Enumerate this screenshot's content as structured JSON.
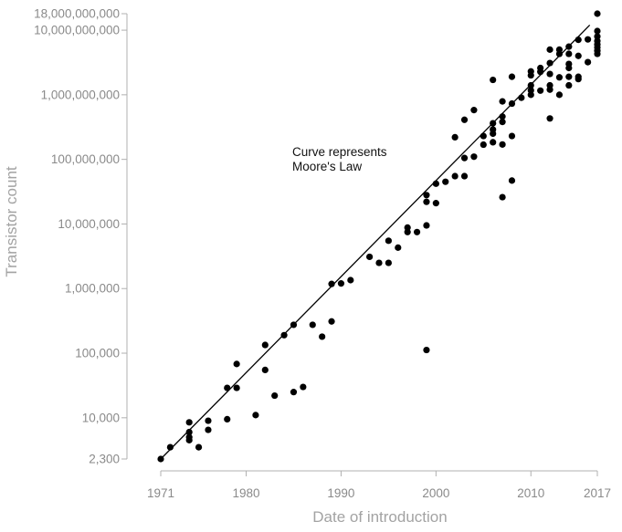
{
  "chart_data": {
    "type": "scatter",
    "title": "",
    "xlabel": "Date of introduction",
    "ylabel": "Transistor count",
    "x_scale": "linear",
    "y_scale": "log",
    "xlim": [
      1971,
      2017
    ],
    "ylim": [
      2300,
      18000000000
    ],
    "x_ticks": [
      1971,
      1980,
      1990,
      2000,
      2010,
      2017
    ],
    "x_tick_labels": [
      "1971",
      "1980",
      "1990",
      "2000",
      "2010",
      "2017"
    ],
    "y_ticks": [
      2300,
      10000,
      100000,
      1000000,
      10000000,
      100000000,
      1000000000,
      10000000000,
      18000000000
    ],
    "y_tick_labels": [
      "2,300",
      "10,000",
      "100,000",
      "1,000,000",
      "10,000,000",
      "100,000,000",
      "1,000,000,000",
      "10,000,000,000",
      "18,000,000,000"
    ],
    "grid": false,
    "annotation": [
      "Curve represents",
      "Moore's Law"
    ],
    "trend_line": {
      "name": "Moore's Law",
      "points": [
        [
          1971,
          2300
        ],
        [
          2016.2,
          12000000000
        ]
      ]
    },
    "colors": {
      "points": "#000000",
      "line": "#000000",
      "axis": "#b0b0b0",
      "labels": "#8a8a8a"
    },
    "points": [
      [
        1971,
        2300
      ],
      [
        1972,
        3500
      ],
      [
        1974,
        4500
      ],
      [
        1974,
        6000
      ],
      [
        1974,
        5000
      ],
      [
        1974,
        8500
      ],
      [
        1975,
        3500
      ],
      [
        1976,
        6500
      ],
      [
        1976,
        9000
      ],
      [
        1978,
        9500
      ],
      [
        1978,
        29000
      ],
      [
        1979,
        29000
      ],
      [
        1979,
        68000
      ],
      [
        1981,
        11000
      ],
      [
        1982,
        55000
      ],
      [
        1982,
        134000
      ],
      [
        1983,
        22000
      ],
      [
        1984,
        190000
      ],
      [
        1985,
        25000
      ],
      [
        1985,
        275000
      ],
      [
        1986,
        30000
      ],
      [
        1987,
        275000
      ],
      [
        1988,
        180000
      ],
      [
        1989,
        1180000
      ],
      [
        1989,
        310000
      ],
      [
        1990,
        1200000
      ],
      [
        1991,
        1350000
      ],
      [
        1993,
        3100000
      ],
      [
        1994,
        2500000
      ],
      [
        1995,
        2500000
      ],
      [
        1995,
        5500000
      ],
      [
        1996,
        4300000
      ],
      [
        1997,
        7500000
      ],
      [
        1997,
        8800000
      ],
      [
        1998,
        7500000
      ],
      [
        1999,
        9500000
      ],
      [
        1999,
        22000000
      ],
      [
        1999,
        28000000
      ],
      [
        1999,
        112000
      ],
      [
        2000,
        21000000
      ],
      [
        2000,
        42000000
      ],
      [
        2001,
        45000000
      ],
      [
        2002,
        55000000
      ],
      [
        2002,
        220000000
      ],
      [
        2003,
        55000000
      ],
      [
        2003,
        105000000
      ],
      [
        2003,
        410000000
      ],
      [
        2004,
        110000000
      ],
      [
        2004,
        580000000
      ],
      [
        2005,
        169000000
      ],
      [
        2005,
        230000000
      ],
      [
        2006,
        184000000
      ],
      [
        2006,
        250000000
      ],
      [
        2006,
        290000000
      ],
      [
        2006,
        362000000
      ],
      [
        2006,
        1700000000
      ],
      [
        2007,
        26000000
      ],
      [
        2007,
        170000000
      ],
      [
        2007,
        380000000
      ],
      [
        2007,
        460000000
      ],
      [
        2007,
        790000000
      ],
      [
        2008,
        47000000
      ],
      [
        2008,
        230000000
      ],
      [
        2008,
        730000000
      ],
      [
        2008,
        1900000000
      ],
      [
        2009,
        900000000
      ],
      [
        2010,
        1000000000
      ],
      [
        2010,
        1170000000
      ],
      [
        2010,
        1400000000
      ],
      [
        2010,
        2000000000
      ],
      [
        2010,
        2300000000
      ],
      [
        2011,
        1160000000
      ],
      [
        2011,
        2270000000
      ],
      [
        2011,
        2600000000
      ],
      [
        2012,
        1200000000
      ],
      [
        2012,
        1400000000
      ],
      [
        2012,
        2100000000
      ],
      [
        2012,
        3100000000
      ],
      [
        2012,
        5000000000
      ],
      [
        2012,
        430000000
      ],
      [
        2013,
        1000000000
      ],
      [
        2013,
        1860000000
      ],
      [
        2013,
        4300000000
      ],
      [
        2013,
        5000000000
      ],
      [
        2014,
        1400000000
      ],
      [
        2014,
        1900000000
      ],
      [
        2014,
        2600000000
      ],
      [
        2014,
        3000000000
      ],
      [
        2014,
        4300000000
      ],
      [
        2014,
        5560000000
      ],
      [
        2015,
        1750000000
      ],
      [
        2015,
        1900000000
      ],
      [
        2015,
        4000000000
      ],
      [
        2015,
        7100000000
      ],
      [
        2016,
        3200000000
      ],
      [
        2016,
        7200000000
      ],
      [
        2017,
        4300000000
      ],
      [
        2017,
        4800000000
      ],
      [
        2017,
        5400000000
      ],
      [
        2017,
        6000000000
      ],
      [
        2017,
        6800000000
      ],
      [
        2017,
        8000000000
      ],
      [
        2017,
        9700000000
      ],
      [
        2017,
        18000000000
      ]
    ]
  }
}
